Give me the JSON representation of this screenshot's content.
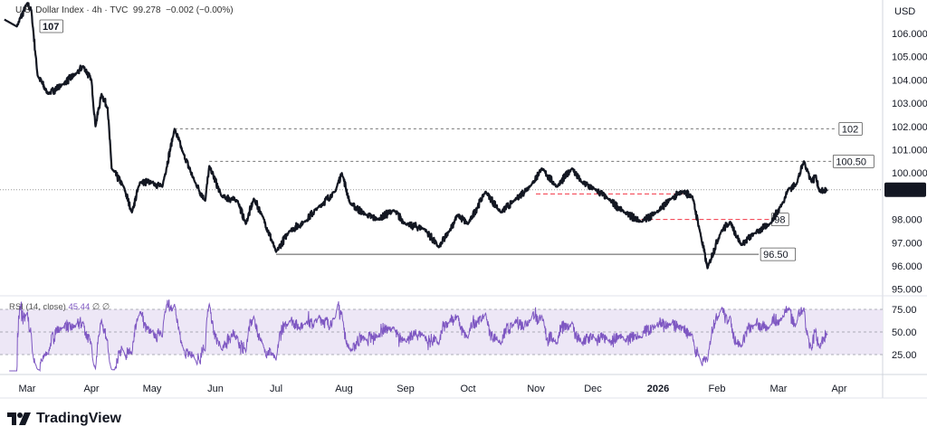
{
  "header": {
    "symbol": "U.S. Dollar Index",
    "interval": "4h",
    "exchange": "TVC",
    "price": "99.278",
    "change": "−0.002 (−0.00%)",
    "separator": "·"
  },
  "rsi_legend": {
    "name": "RSI (14, close)",
    "value": "45.44",
    "extra1": "∅",
    "extra2": "∅"
  },
  "brand": {
    "name": "TradingView",
    "logo_icon": "tradingview-logo-icon"
  },
  "colors": {
    "price_line": "#131722",
    "rsi_line": "#7e57c2",
    "rsi_band": "#ede7f6",
    "red_level": "#f23645",
    "grid_text": "#131722"
  },
  "chart_data": {
    "type": "line",
    "title": "U.S. Dollar Index · 4h · TVC",
    "currency": "USD",
    "y_ticks": [
      "95.000",
      "96.000",
      "97.000",
      "98.000",
      "99.000",
      "100.000",
      "101.000",
      "102.000",
      "103.000",
      "104.000",
      "105.000",
      "106.000"
    ],
    "ylim": [
      94.7,
      107.4
    ],
    "x_ticks": [
      {
        "label": "Mar",
        "date": "2025-03-01"
      },
      {
        "label": "Apr",
        "date": "2025-04-01"
      },
      {
        "label": "May",
        "date": "2025-05-01"
      },
      {
        "label": "Jun",
        "date": "2025-06-01"
      },
      {
        "label": "Jul",
        "date": "2025-07-01"
      },
      {
        "label": "Aug",
        "date": "2025-08-01"
      },
      {
        "label": "Sep",
        "date": "2025-09-01"
      },
      {
        "label": "Oct",
        "date": "2025-10-01"
      },
      {
        "label": "Nov",
        "date": "2025-11-01"
      },
      {
        "label": "Dec",
        "date": "2025-12-01"
      },
      {
        "label": "2026",
        "date": "2026-01-01"
      },
      {
        "label": "Feb",
        "date": "2026-02-01"
      },
      {
        "label": "Mar",
        "date": "2026-03-01"
      },
      {
        "label": "Apr",
        "date": "2026-04-01"
      }
    ],
    "last_price_label": "99.278",
    "series": [
      {
        "points": [
          [
            "2025-02-18",
            106.6
          ],
          [
            "2025-02-24",
            106.3
          ],
          [
            "2025-03-01",
            107.3
          ],
          [
            "2025-03-03",
            107.0
          ],
          [
            "2025-03-06",
            104.2
          ],
          [
            "2025-03-11",
            103.4
          ],
          [
            "2025-03-18",
            103.8
          ],
          [
            "2025-03-25",
            104.3
          ],
          [
            "2025-03-28",
            104.6
          ],
          [
            "2025-04-01",
            104.0
          ],
          [
            "2025-04-03",
            102.0
          ],
          [
            "2025-04-06",
            103.4
          ],
          [
            "2025-04-09",
            102.8
          ],
          [
            "2025-04-11",
            100.2
          ],
          [
            "2025-04-17",
            99.4
          ],
          [
            "2025-04-21",
            98.3
          ],
          [
            "2025-04-25",
            99.6
          ],
          [
            "2025-05-01",
            99.6
          ],
          [
            "2025-05-06",
            99.4
          ],
          [
            "2025-05-12",
            101.9
          ],
          [
            "2025-05-16",
            100.9
          ],
          [
            "2025-05-22",
            99.6
          ],
          [
            "2025-05-27",
            98.8
          ],
          [
            "2025-05-29",
            100.3
          ],
          [
            "2025-06-04",
            99.0
          ],
          [
            "2025-06-12",
            98.8
          ],
          [
            "2025-06-16",
            97.8
          ],
          [
            "2025-06-20",
            98.9
          ],
          [
            "2025-06-24",
            98.2
          ],
          [
            "2025-07-01",
            96.6
          ],
          [
            "2025-07-07",
            97.5
          ],
          [
            "2025-07-14",
            97.9
          ],
          [
            "2025-07-20",
            98.5
          ],
          [
            "2025-07-28",
            99.2
          ],
          [
            "2025-07-31",
            100.0
          ],
          [
            "2025-08-04",
            98.7
          ],
          [
            "2025-08-12",
            98.2
          ],
          [
            "2025-08-18",
            98.0
          ],
          [
            "2025-08-26",
            98.4
          ],
          [
            "2025-09-01",
            97.8
          ],
          [
            "2025-09-10",
            97.6
          ],
          [
            "2025-09-17",
            96.8
          ],
          [
            "2025-09-22",
            97.5
          ],
          [
            "2025-09-26",
            98.2
          ],
          [
            "2025-10-01",
            97.8
          ],
          [
            "2025-10-09",
            99.2
          ],
          [
            "2025-10-16",
            98.3
          ],
          [
            "2025-10-22",
            98.8
          ],
          [
            "2025-10-30",
            99.5
          ],
          [
            "2025-11-04",
            100.2
          ],
          [
            "2025-11-12",
            99.4
          ],
          [
            "2025-11-20",
            100.2
          ],
          [
            "2025-11-25",
            99.6
          ],
          [
            "2025-12-02",
            99.3
          ],
          [
            "2025-12-08",
            98.9
          ],
          [
            "2025-12-16",
            98.3
          ],
          [
            "2025-12-24",
            97.9
          ],
          [
            "2025-12-31",
            98.3
          ],
          [
            "2026-01-08",
            98.9
          ],
          [
            "2026-01-14",
            99.2
          ],
          [
            "2026-01-19",
            99.0
          ],
          [
            "2026-01-23",
            97.5
          ],
          [
            "2026-01-27",
            95.9
          ],
          [
            "2026-02-03",
            97.5
          ],
          [
            "2026-02-07",
            97.9
          ],
          [
            "2026-02-12",
            96.9
          ],
          [
            "2026-02-18",
            97.4
          ],
          [
            "2026-02-25",
            97.8
          ],
          [
            "2026-03-03",
            98.7
          ],
          [
            "2026-03-06",
            99.3
          ],
          [
            "2026-03-10",
            99.5
          ],
          [
            "2026-03-14",
            100.5
          ],
          [
            "2026-03-18",
            99.6
          ],
          [
            "2026-03-20",
            99.9
          ],
          [
            "2026-03-22",
            99.2
          ],
          [
            "2026-03-26",
            99.278
          ]
        ]
      }
    ],
    "levels": [
      {
        "label": "107",
        "value": 107.3,
        "style": "label",
        "from": "2025-03-01",
        "to": "2025-03-01"
      },
      {
        "label": "102",
        "value": 101.9,
        "style": "dotted",
        "from": "2025-05-12",
        "to": "2026-03-31"
      },
      {
        "label": "100.50",
        "value": 100.5,
        "style": "dotted",
        "from": "2025-05-29",
        "to": "2026-03-28"
      },
      {
        "label": "98",
        "value": 98.0,
        "style": "red-dashed",
        "from": "2025-12-24",
        "to": "2026-02-25"
      },
      {
        "label": "",
        "value": 99.1,
        "style": "red-dashed",
        "from": "2025-11-01",
        "to": "2026-01-14"
      },
      {
        "label": "96.50",
        "value": 96.5,
        "style": "solid",
        "from": "2025-07-01",
        "to": "2026-02-20"
      }
    ],
    "rsi": {
      "period": 14,
      "source": "close",
      "last": 45.44,
      "ticks": [
        "25.00",
        "50.00",
        "75.00"
      ],
      "band": [
        30,
        70
      ]
    }
  }
}
